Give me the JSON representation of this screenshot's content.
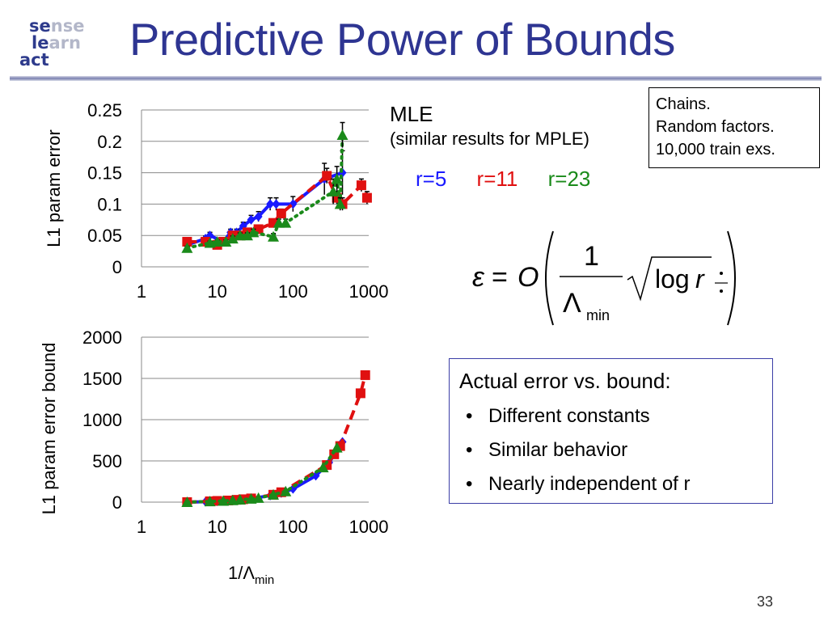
{
  "slide": {
    "title": "Predictive Power of Bounds",
    "page_number": "33",
    "logo": {
      "line1": [
        "se",
        "nse"
      ],
      "line2": [
        "le",
        "arn"
      ],
      "line3": [
        "act",
        ""
      ]
    },
    "mle_title": "MLE",
    "mle_subtitle": "(similar results for MPLE)",
    "r_labels": [
      {
        "text": "r=5",
        "color": "#1a1aff"
      },
      {
        "text": "r=11",
        "color": "#e01010"
      },
      {
        "text": "r=23",
        "color": "#1a8a1a"
      }
    ],
    "chains_box": [
      "Chains.",
      "Random factors.",
      "10,000 train exs."
    ],
    "formula": {
      "epsilon": "ε",
      "eq": "=",
      "O": "O",
      "one": "1",
      "lambda": "Λ",
      "min": "min",
      "log": "log",
      "r": "r"
    },
    "bound_box": {
      "title": "Actual error vs. bound:",
      "bullet": "•",
      "items": [
        "Different constants",
        "Similar behavior",
        "Nearly independent of r"
      ]
    }
  },
  "colors": {
    "title": "#2e3592",
    "r5": "#1a1aff",
    "r11": "#e01010",
    "r23": "#1a8a1a"
  },
  "chart_data": [
    {
      "type": "line",
      "xscale": "log",
      "xlim": [
        1,
        1000
      ],
      "ylim": [
        0,
        0.25
      ],
      "xticks": [
        "1",
        "10",
        "100",
        "1000"
      ],
      "yticks": [
        "0",
        "0.05",
        "0.1",
        "0.15",
        "0.2",
        "0.25"
      ],
      "ylabel": "L1 param error",
      "xlabel": "",
      "grid": "horizontal",
      "series": [
        {
          "name": "r=5",
          "color": "#1a1aff",
          "marker": "diamond",
          "style": "solid",
          "x": [
            4,
            7,
            8,
            12,
            15,
            18,
            22,
            28,
            35,
            50,
            60,
            100,
            260,
            450
          ],
          "y": [
            0.035,
            0.045,
            0.05,
            0.04,
            0.055,
            0.055,
            0.065,
            0.075,
            0.08,
            0.1,
            0.1,
            0.1,
            0.14,
            0.15
          ],
          "err": [
            0.004,
            0.004,
            0.005,
            0.004,
            0.005,
            0.005,
            0.006,
            0.007,
            0.008,
            0.01,
            0.01,
            0.012,
            0.025,
            0.035
          ]
        },
        {
          "name": "r=11",
          "color": "#e01010",
          "marker": "square",
          "style": "dashed",
          "x": [
            4,
            7,
            10,
            12,
            16,
            20,
            25,
            35,
            55,
            70,
            280,
            380,
            450,
            800,
            950
          ],
          "y": [
            0.04,
            0.04,
            0.035,
            0.04,
            0.05,
            0.05,
            0.055,
            0.06,
            0.07,
            0.085,
            0.145,
            0.11,
            0.1,
            0.13,
            0.11
          ],
          "err": [
            0.003,
            0.003,
            0.003,
            0.004,
            0.004,
            0.004,
            0.005,
            0.005,
            0.006,
            0.007,
            0.012,
            0.01,
            0.01,
            0.01,
            0.01
          ]
        },
        {
          "name": "r=23",
          "color": "#1a8a1a",
          "marker": "triangle",
          "style": "dotted",
          "x": [
            4,
            8,
            10,
            13,
            16,
            20,
            25,
            30,
            55,
            65,
            80,
            340,
            380,
            420,
            450
          ],
          "y": [
            0.03,
            0.038,
            0.04,
            0.04,
            0.045,
            0.05,
            0.05,
            0.055,
            0.048,
            0.07,
            0.07,
            0.12,
            0.14,
            0.1,
            0.21
          ],
          "err": [
            0.003,
            0.003,
            0.003,
            0.003,
            0.004,
            0.004,
            0.004,
            0.005,
            0.005,
            0.006,
            0.006,
            0.02,
            0.02,
            0.01,
            0.02
          ]
        }
      ]
    },
    {
      "type": "line",
      "xscale": "log",
      "xlim": [
        1,
        1000
      ],
      "ylim": [
        0,
        2000
      ],
      "xticks": [
        "1",
        "10",
        "100",
        "1000"
      ],
      "yticks": [
        "0",
        "500",
        "1000",
        "1500",
        "2000"
      ],
      "ylabel": "L1 param error bound",
      "xlabel": "1/Λ",
      "xlabel_sub": "min",
      "grid": "horizontal",
      "series": [
        {
          "name": "r=5",
          "color": "#1a1aff",
          "marker": "diamond",
          "style": "solid",
          "x": [
            4,
            7,
            10,
            15,
            20,
            30,
            50,
            70,
            100,
            200,
            300,
            450
          ],
          "y": [
            0,
            5,
            10,
            20,
            30,
            45,
            80,
            110,
            160,
            320,
            480,
            730
          ]
        },
        {
          "name": "r=11",
          "color": "#e01010",
          "marker": "square",
          "style": "dashed",
          "x": [
            4,
            8,
            10,
            14,
            18,
            22,
            28,
            55,
            70,
            280,
            350,
            420,
            780,
            900
          ],
          "y": [
            0,
            10,
            15,
            20,
            28,
            35,
            45,
            90,
            120,
            450,
            580,
            680,
            1320,
            1540
          ]
        },
        {
          "name": "r=23",
          "color": "#1a8a1a",
          "marker": "triangle",
          "style": "dotted",
          "x": [
            4,
            8,
            12,
            16,
            20,
            28,
            35,
            55,
            80,
            250,
            380
          ],
          "y": [
            0,
            8,
            15,
            22,
            30,
            40,
            50,
            90,
            130,
            420,
            660
          ]
        }
      ]
    }
  ]
}
